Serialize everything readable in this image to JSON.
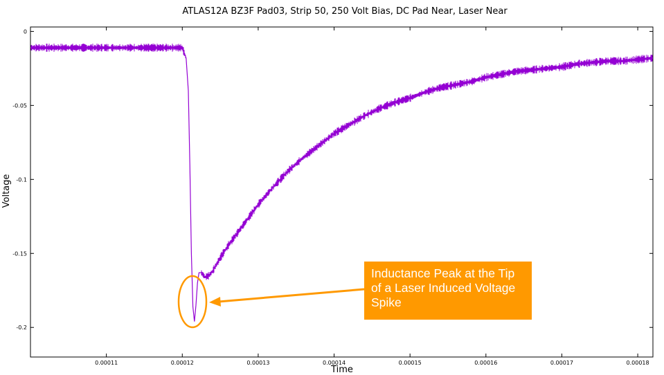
{
  "chart_data": {
    "type": "line",
    "title": "ATLAS12A BZ3F Pad03, Strip 50, 250 Volt Bias, DC Pad Near, Laser Near",
    "xlabel": "Time",
    "ylabel": "Voltage",
    "xlim": [
      0.0001,
      0.000182
    ],
    "ylim": [
      -0.22,
      0.003
    ],
    "xticks": [
      "0.00011",
      "0.00012",
      "0.00013",
      "0.00014",
      "0.00015",
      "0.00016",
      "0.00017",
      "0.00018"
    ],
    "xtick_values": [
      0.00011,
      0.00012,
      0.00013,
      0.00014,
      0.00015,
      0.00016,
      0.00017,
      0.00018
    ],
    "yticks": [
      "0",
      "-0.05",
      "-0.1",
      "-0.15",
      "-0.2"
    ],
    "ytick_values": [
      0,
      -0.05,
      -0.1,
      -0.15,
      -0.2
    ],
    "grid": false,
    "line_color": "#9400d3",
    "accent_color": "#ff9900",
    "series": [
      {
        "x": [
          0.0001,
          0.000105,
          0.00011,
          0.000115,
          0.00012,
          0.0001205,
          0.0001208,
          0.000121,
          0.0001212,
          0.0001214,
          0.0001216,
          0.0001218,
          0.000122,
          0.0001222,
          0.0001225,
          0.000123,
          0.0001235,
          0.000124,
          0.000125,
          0.000126,
          0.000128,
          0.00013,
          0.000132,
          0.000134,
          0.000136,
          0.000138,
          0.00014,
          0.000142,
          0.000144,
          0.000146,
          0.000148,
          0.00015,
          0.000152,
          0.000154,
          0.000156,
          0.000158,
          0.00016,
          0.000162,
          0.000164,
          0.000166,
          0.000168,
          0.00017,
          0.000172,
          0.000174,
          0.000176,
          0.000178,
          0.00018,
          0.000182
        ],
        "y": [
          -0.011,
          -0.011,
          -0.011,
          -0.011,
          -0.011,
          -0.018,
          -0.04,
          -0.09,
          -0.15,
          -0.186,
          -0.196,
          -0.185,
          -0.17,
          -0.163,
          -0.163,
          -0.166,
          -0.165,
          -0.162,
          -0.153,
          -0.145,
          -0.131,
          -0.117,
          -0.105,
          -0.094,
          -0.085,
          -0.077,
          -0.069,
          -0.063,
          -0.057,
          -0.052,
          -0.048,
          -0.045,
          -0.041,
          -0.038,
          -0.036,
          -0.034,
          -0.031,
          -0.029,
          -0.027,
          -0.026,
          -0.025,
          -0.024,
          -0.022,
          -0.021,
          -0.02,
          -0.02,
          -0.019,
          -0.018
        ]
      }
    ],
    "annotation": {
      "text": "Inductance Peak at the Tip of a Laser Induced Voltage Spike",
      "target": {
        "x": 0.0001218,
        "y": -0.186
      }
    }
  }
}
